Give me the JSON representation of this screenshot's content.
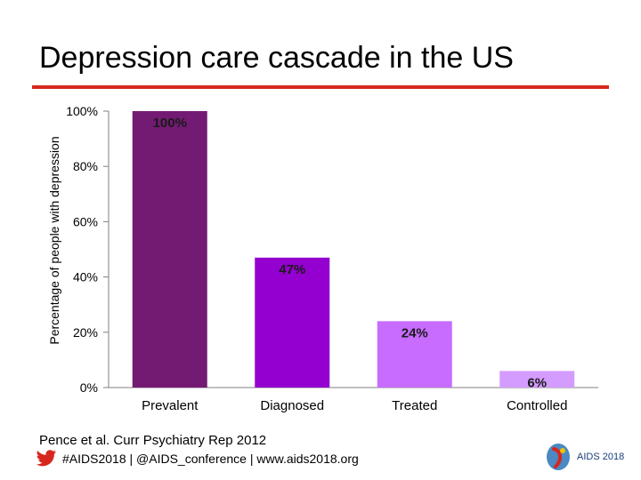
{
  "slide": {
    "title": "Depression care cascade in the US",
    "accent_color": "#d7261e",
    "citation": "Pence et al. Curr Psychiatry Rep 2012"
  },
  "footer": {
    "text": "#AIDS2018 | @AIDS_conference | www.aids2018.org",
    "icon": "twitter-bird-icon",
    "icon_color": "#d7261e",
    "logo_text": "AIDS 2018"
  },
  "chart_data": {
    "type": "bar",
    "categories": [
      "Prevalent",
      "Diagnosed",
      "Treated",
      "Controlled"
    ],
    "values": [
      100,
      47,
      24,
      6
    ],
    "data_labels": [
      "100%",
      "47%",
      "24%",
      "6%"
    ],
    "bar_colors": [
      "#731a73",
      "#9400cf",
      "#c76cff",
      "#d49cff"
    ],
    "ylabel": "Percentage of people with depression",
    "ylim": [
      0,
      100
    ],
    "yticks": [
      0,
      20,
      40,
      60,
      80,
      100
    ],
    "ytick_labels": [
      "0%",
      "20%",
      "40%",
      "60%",
      "80%",
      "100%"
    ],
    "grid": false,
    "legend": "none"
  }
}
